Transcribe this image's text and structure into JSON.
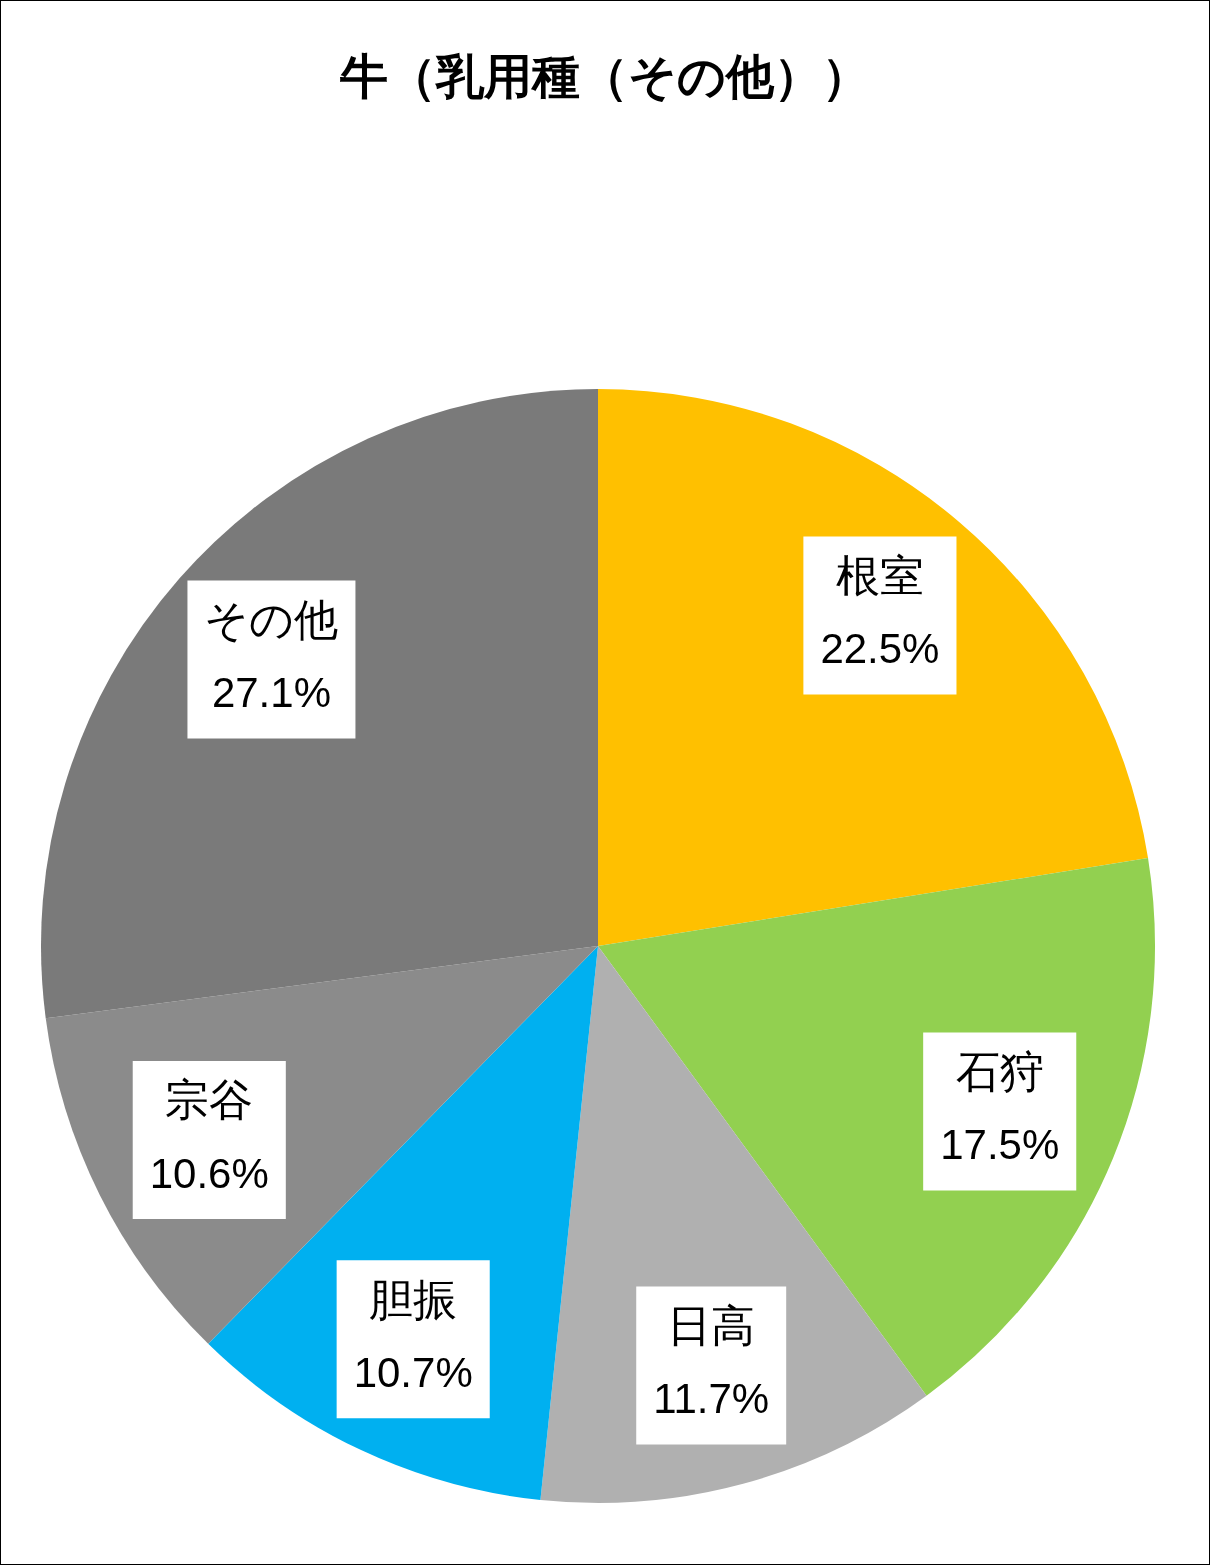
{
  "chart_data": {
    "type": "pie",
    "title": "牛（乳用種（その他））",
    "categories": [
      "根室",
      "石狩",
      "日高",
      "胆振",
      "宗谷",
      "その他"
    ],
    "values": [
      22.5,
      17.5,
      11.7,
      10.7,
      10.6,
      27.1
    ],
    "colors": [
      "#ffc000",
      "#92d050",
      "#b0b0b0",
      "#00b0f0",
      "#8b8b8b",
      "#7a7a7a"
    ],
    "value_labels": [
      "22.5%",
      "17.5%",
      "11.7%",
      "10.7%",
      "10.6%",
      "27.1%"
    ],
    "legend": false
  }
}
